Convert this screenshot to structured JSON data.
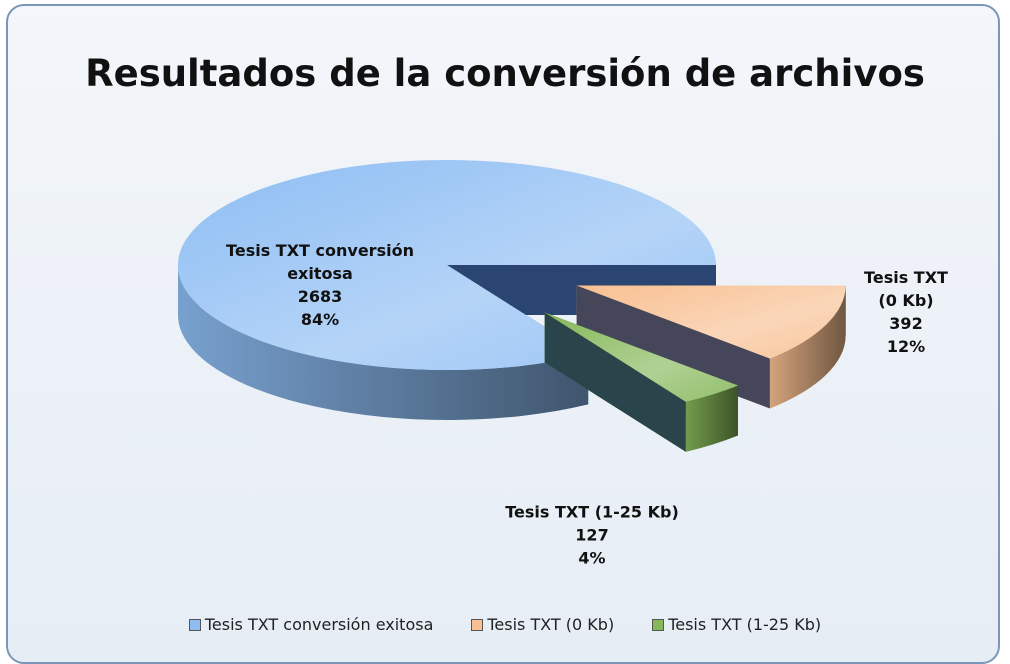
{
  "chart_data": {
    "type": "pie3d",
    "title": "Resultados de la conversión de archivos",
    "categories": [
      "Tesis TXT conversión exitosa",
      "Tesis TXT (0 Kb)",
      "Tesis TXT (1-25 Kb)"
    ],
    "values": [
      2683,
      392,
      127
    ],
    "percent_labels": [
      "84%",
      "12%",
      "4%"
    ],
    "colors": [
      "#8dbdf3",
      "#f8c092",
      "#86b85a"
    ],
    "legend": "bottom"
  }
}
